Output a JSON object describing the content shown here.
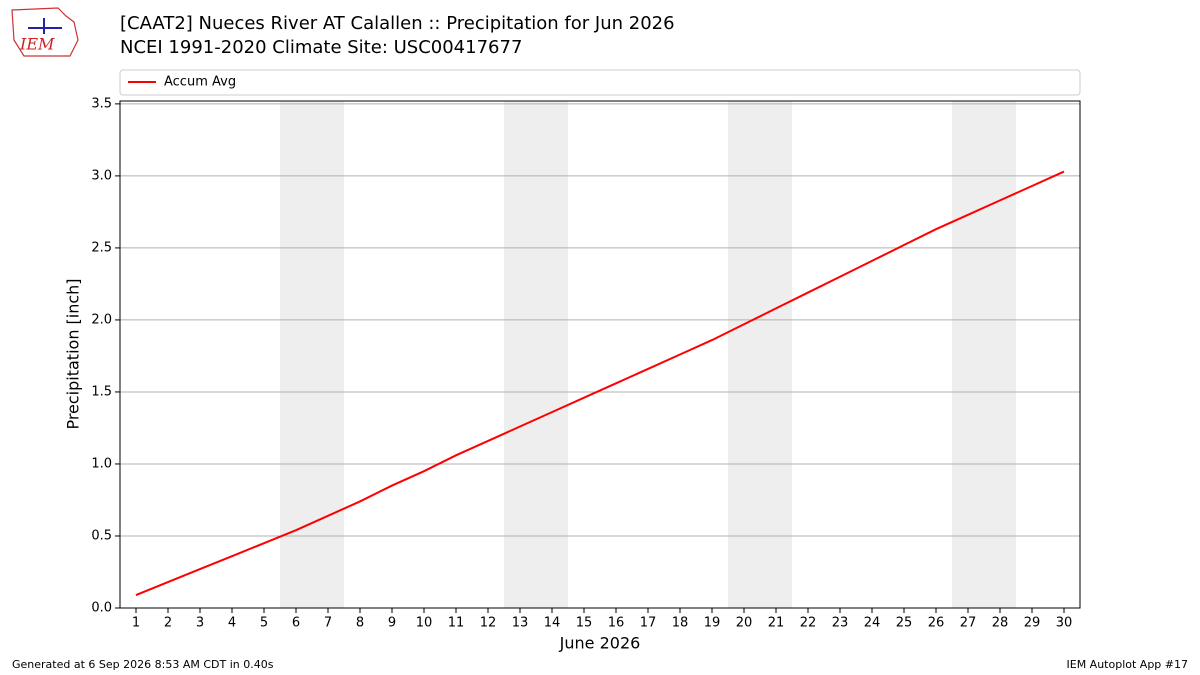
{
  "chart_data": {
    "type": "line",
    "title": "[CAAT2] Nueces River  AT Calallen :: Precipitation for Jun 2026",
    "subtitle": "NCEI 1991-2020 Climate Site: USC00417677",
    "xlabel": "June 2026",
    "ylabel": "Precipitation [inch]",
    "x": [
      1,
      2,
      3,
      4,
      5,
      6,
      7,
      8,
      9,
      10,
      11,
      12,
      13,
      14,
      15,
      16,
      17,
      18,
      19,
      20,
      21,
      22,
      23,
      24,
      25,
      26,
      27,
      28,
      29,
      30
    ],
    "series": [
      {
        "name": "Accum Avg",
        "color": "#ff0000",
        "values": [
          0.09,
          0.18,
          0.27,
          0.36,
          0.45,
          0.54,
          0.64,
          0.74,
          0.85,
          0.95,
          1.06,
          1.16,
          1.26,
          1.36,
          1.46,
          1.56,
          1.66,
          1.76,
          1.86,
          1.97,
          2.08,
          2.19,
          2.3,
          2.41,
          2.52,
          2.63,
          2.73,
          2.83,
          2.93,
          3.03
        ]
      }
    ],
    "xlim": [
      0.5,
      30.5
    ],
    "ylim": [
      0,
      3.52
    ],
    "xticks": [
      1,
      2,
      3,
      4,
      5,
      6,
      7,
      8,
      9,
      10,
      11,
      12,
      13,
      14,
      15,
      16,
      17,
      18,
      19,
      20,
      21,
      22,
      23,
      24,
      25,
      26,
      27,
      28,
      29,
      30
    ],
    "yticks": [
      {
        "value": 0,
        "label": "0.0"
      },
      0.5,
      {
        "value": 1,
        "label": "1.0"
      },
      1.5,
      {
        "value": 2,
        "label": "2.0"
      },
      2.5,
      {
        "value": 3,
        "label": "3.0"
      },
      3.5
    ],
    "shaded_spans": [
      [
        5.5,
        7.5
      ],
      [
        12.5,
        14.5
      ],
      [
        19.5,
        21.5
      ],
      [
        26.5,
        28.5
      ]
    ],
    "shade_color": "#eeeeee",
    "grid": true,
    "legend": "top"
  },
  "logo_text": "IEM",
  "footer_left": "Generated at 6 Sep 2026 8:53 AM CDT in 0.40s",
  "footer_right": "IEM Autoplot App #17"
}
